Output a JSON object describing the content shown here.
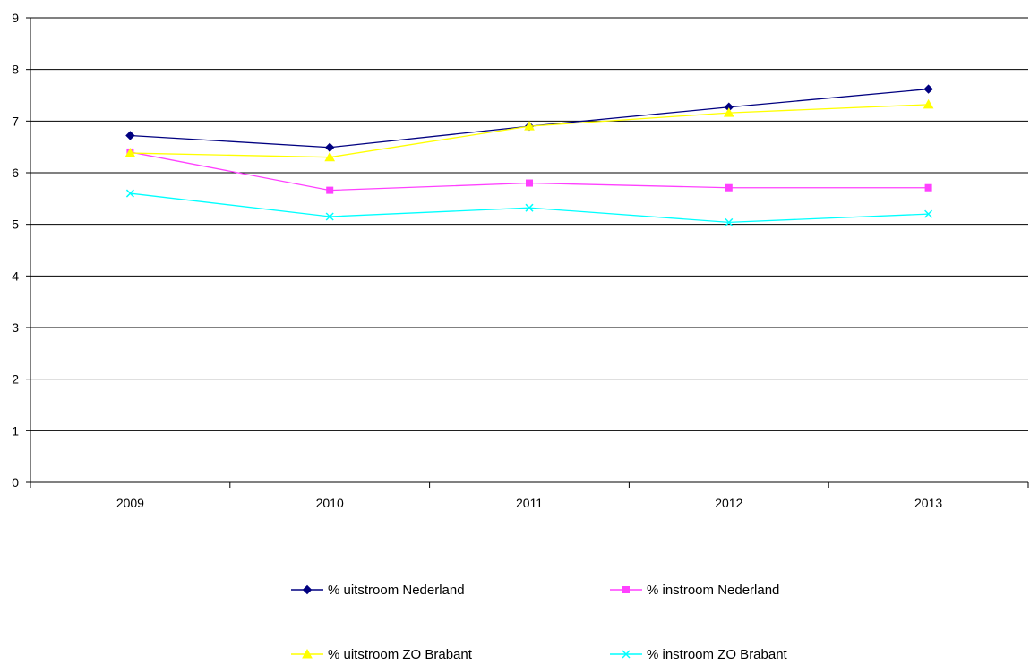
{
  "chart_data": {
    "type": "line",
    "title": "",
    "xlabel": "",
    "ylabel": "",
    "categories": [
      "2009",
      "2010",
      "2011",
      "2012",
      "2013"
    ],
    "ylim": [
      0,
      9
    ],
    "yticks": [
      0,
      1,
      2,
      3,
      4,
      5,
      6,
      7,
      8,
      9
    ],
    "grid": true,
    "legend_position": "bottom",
    "series": [
      {
        "name": "% uitstroom Nederland",
        "values": [
          6.72,
          6.49,
          6.9,
          7.27,
          7.62
        ],
        "color": "#000080",
        "marker": "diamond"
      },
      {
        "name": "% instroom Nederland",
        "values": [
          6.4,
          5.66,
          5.8,
          5.71,
          5.71
        ],
        "color": "#FF40FF",
        "marker": "square"
      },
      {
        "name": "% uitstroom ZO Brabant",
        "values": [
          6.38,
          6.3,
          6.9,
          7.16,
          7.32
        ],
        "color": "#FFFF00",
        "marker": "triangle"
      },
      {
        "name": "% instroom ZO Brabant",
        "values": [
          5.6,
          5.15,
          5.32,
          5.04,
          5.2
        ],
        "color": "#00FFFF",
        "marker": "x"
      }
    ]
  }
}
